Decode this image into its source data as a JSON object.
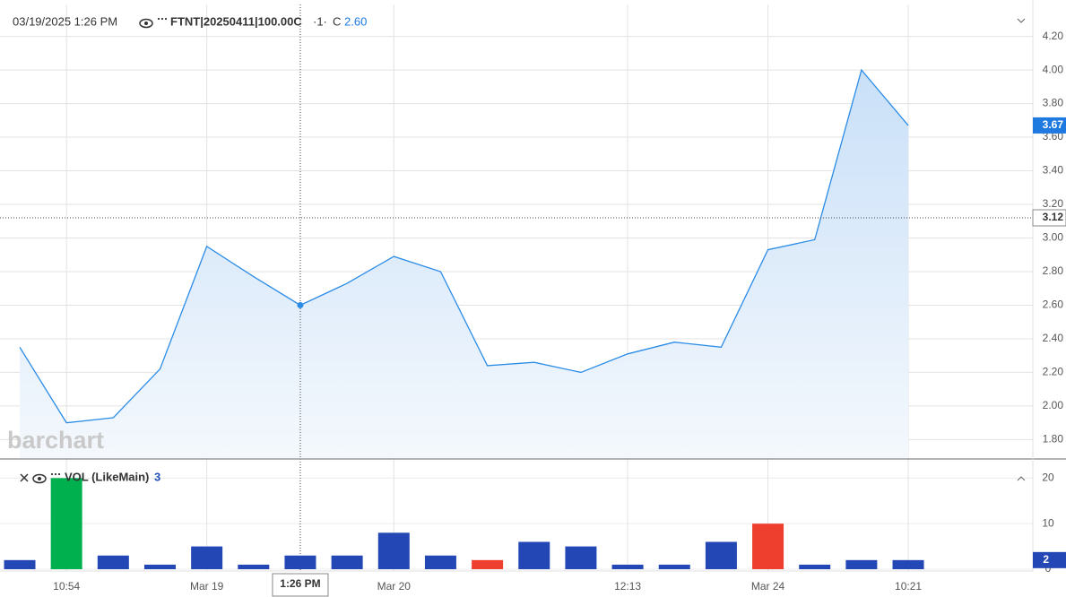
{
  "chart_data": [
    {
      "type": "line",
      "header": {
        "timestamp": "03/19/2025 1:26 PM",
        "title": "FTNT|20250411|100.00C",
        "interval": "·1·",
        "close_prefix": "C"
      },
      "watermark": "barchart",
      "categories": [
        null,
        "10:54",
        null,
        null,
        "Mar 19",
        null,
        "1:26 PM",
        null,
        "Mar 20",
        null,
        null,
        null,
        null,
        "12:13",
        null,
        null,
        "Mar 24",
        null,
        null,
        "10:21"
      ],
      "values": [
        2.35,
        1.9,
        1.93,
        2.22,
        2.95,
        2.77,
        2.6,
        2.73,
        2.89,
        2.8,
        2.24,
        2.26,
        2.2,
        2.31,
        2.38,
        2.35,
        2.93,
        2.99,
        4.0,
        3.67
      ],
      "value_labels": [
        null,
        null,
        null,
        null,
        null,
        null,
        "2.60",
        null,
        null,
        null,
        null,
        null,
        null,
        null,
        null,
        null,
        null,
        null,
        null,
        "3.67"
      ],
      "color": "#2b8ce6",
      "crosshair_index": 6,
      "crosshair_y": {
        "value": 3.12,
        "label": "3.12"
      },
      "ylim": [
        1.69,
        4.39
      ],
      "yticks": [
        {
          "value": 1.8,
          "label": "1.80"
        },
        {
          "value": 2.0,
          "label": "2.00"
        },
        {
          "value": 2.2,
          "label": "2.20"
        },
        {
          "value": 2.4,
          "label": "2.40"
        },
        {
          "value": 2.6,
          "label": "2.60"
        },
        {
          "value": 2.8,
          "label": "2.80"
        },
        {
          "value": 3.0,
          "label": "3.00"
        },
        {
          "value": 3.2,
          "label": "3.20"
        },
        {
          "value": 3.4,
          "label": "3.40"
        },
        {
          "value": 3.6,
          "label": "3.60"
        },
        {
          "value": 3.8,
          "label": "3.80"
        },
        {
          "value": 4.0,
          "label": "4.00"
        },
        {
          "value": 4.2,
          "label": "4.20"
        }
      ],
      "grid": true
    },
    {
      "type": "bar",
      "title": "VOL (LikeMain)",
      "values": [
        2,
        20,
        3,
        1,
        5,
        1,
        3,
        3,
        8,
        3,
        2,
        6,
        5,
        1,
        1,
        6,
        10,
        1,
        2,
        2
      ],
      "colors": [
        "#2347b5",
        "#00b04f",
        "#2347b5",
        "#2347b5",
        "#2347b5",
        "#2347b5",
        "#2347b5",
        "#2347b5",
        "#2347b5",
        "#2347b5",
        "#ee3f2e",
        "#2347b5",
        "#2347b5",
        "#2347b5",
        "#2347b5",
        "#2347b5",
        "#ee3f2e",
        "#2347b5",
        "#2347b5",
        "#2347b5"
      ],
      "ylim": [
        0,
        24
      ],
      "yticks": [
        0,
        10,
        20
      ]
    }
  ]
}
